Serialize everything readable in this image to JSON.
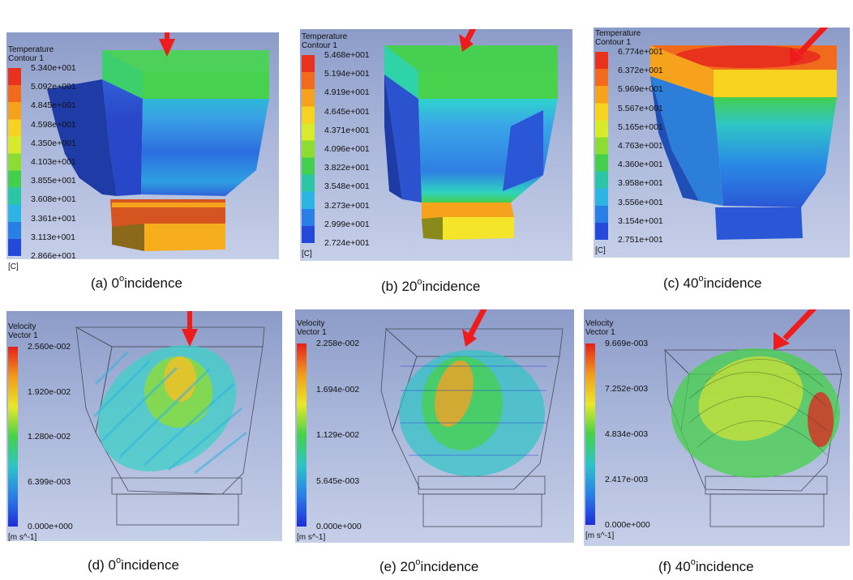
{
  "panels": [
    {
      "id": "a",
      "kind": "temperature",
      "title1": "Temperature",
      "title2": "Contour 1",
      "unit": "[C]",
      "ticks": [
        "5.340e+001",
        "5.092e+001",
        "4.845e+001",
        "4.598e+001",
        "4.350e+001",
        "4.103e+001",
        "3.855e+001",
        "3.608e+001",
        "3.361e+001",
        "3.113e+001",
        "2.866e+001"
      ],
      "caption_prefix": "(a) 0",
      "caption_deg": "o",
      "caption_suffix": "incidence"
    },
    {
      "id": "b",
      "kind": "temperature",
      "title1": "Temperature",
      "title2": "Contour 1",
      "unit": "[C]",
      "ticks": [
        "5.468e+001",
        "5.194e+001",
        "4.919e+001",
        "4.645e+001",
        "4.371e+001",
        "4.096e+001",
        "3.822e+001",
        "3.548e+001",
        "3.273e+001",
        "2.999e+001",
        "2.724e+001"
      ],
      "caption_prefix": "(b) 20",
      "caption_deg": "o",
      "caption_suffix": "incidence"
    },
    {
      "id": "c",
      "kind": "temperature",
      "title1": "Temperature",
      "title2": "Contour 1",
      "unit": "[C]",
      "ticks": [
        "6.774e+001",
        "6.372e+001",
        "5.969e+001",
        "5.567e+001",
        "5.165e+001",
        "4.763e+001",
        "4.360e+001",
        "3.958e+001",
        "3.556e+001",
        "3.154e+001",
        "2.751e+001"
      ],
      "caption_prefix": "(c) 40",
      "caption_deg": "o",
      "caption_suffix": "incidence"
    },
    {
      "id": "d",
      "kind": "velocity",
      "title1": "Velocity",
      "title2": "Vector 1",
      "unit": "[m s^-1]",
      "ticks": [
        "2.560e-002",
        "1.920e-002",
        "1.280e-002",
        "6.399e-003",
        "0.000e+000"
      ],
      "caption_prefix": "(d) 0",
      "caption_deg": "o",
      "caption_suffix": "incidence"
    },
    {
      "id": "e",
      "kind": "velocity",
      "title1": "Velocity",
      "title2": "Vector 1",
      "unit": "[m s^-1]",
      "ticks": [
        "2.258e-002",
        "1.694e-002",
        "1.129e-002",
        "5.645e-003",
        "0.000e+000"
      ],
      "caption_prefix": "(e) 20",
      "caption_deg": "o",
      "caption_suffix": "incidence"
    },
    {
      "id": "f",
      "kind": "velocity",
      "title1": "Velocity",
      "title2": "Vector 1",
      "unit": "[m s^-1]",
      "ticks": [
        "9.669e-003",
        "7.252e-003",
        "4.834e-003",
        "2.417e-003",
        "0.000e+000"
      ],
      "caption_prefix": "(f) 40",
      "caption_deg": "o",
      "caption_suffix": "incidence"
    }
  ],
  "colors": {
    "arrow": "#ee1c1c",
    "contour_bands": [
      "#e8321e",
      "#f26a1c",
      "#f6a21c",
      "#f7d31f",
      "#d8ea2c",
      "#8ddc34",
      "#44cf4e",
      "#2cc6a6",
      "#2eb4e2",
      "#2a7fe6",
      "#2448d8"
    ],
    "vector_gradient": [
      "#e3211c",
      "#f29a1c",
      "#e9e82a",
      "#46d14a",
      "#2ec4c6",
      "#2a7ee6",
      "#1f2ed8"
    ]
  }
}
